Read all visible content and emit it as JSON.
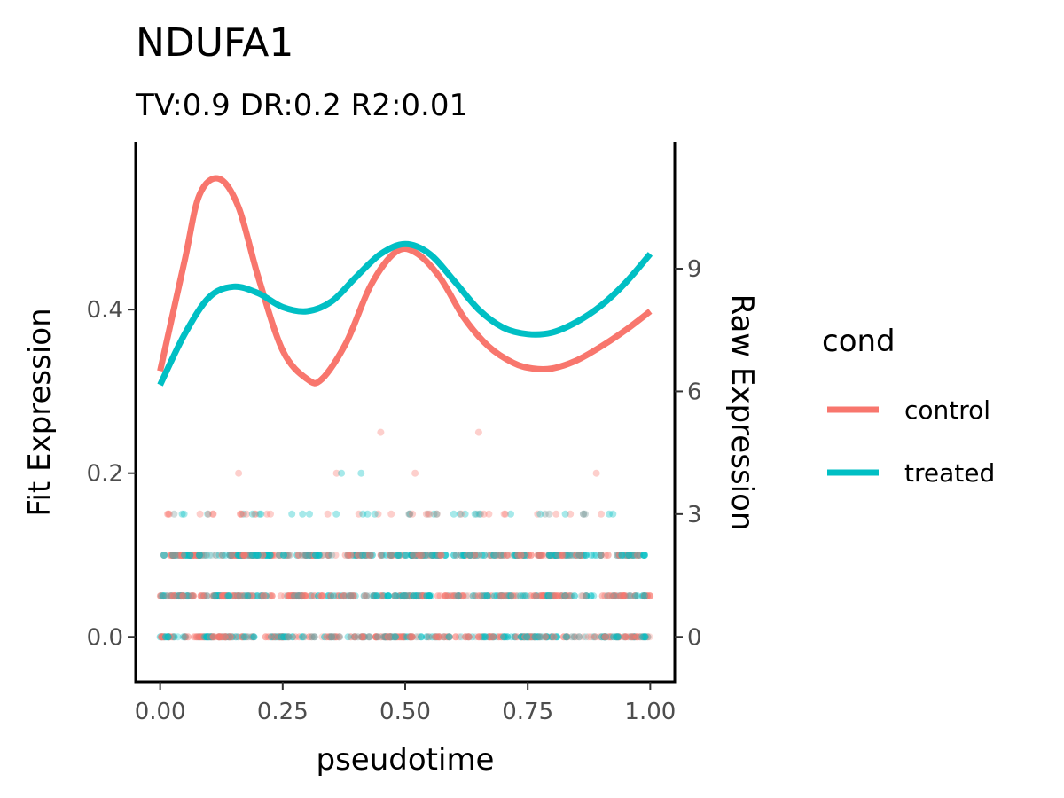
{
  "chart_data": {
    "type": "line+scatter",
    "title": "NDUFA1",
    "subtitle": "TV:0.9 DR:0.2 R2:0.01",
    "xlabel": "pseudotime",
    "ylabel_left": "Fit Expression",
    "ylabel_right": "Raw Expression",
    "xlim": [
      -0.05,
      1.05
    ],
    "ylim_left": [
      -0.055,
      0.605
    ],
    "ylim_right": [
      -1.1,
      12.1
    ],
    "x_ticks": [
      0.0,
      0.25,
      0.5,
      0.75,
      1.0
    ],
    "x_tick_labels": [
      "0.00",
      "0.25",
      "0.50",
      "0.75",
      "1.00"
    ],
    "y_left_ticks": [
      0.0,
      0.2,
      0.4
    ],
    "y_left_tick_labels": [
      "0.0",
      "0.2",
      "0.4"
    ],
    "y_right_ticks": [
      0,
      3,
      6,
      9
    ],
    "y_right_tick_labels": [
      "0",
      "3",
      "6",
      "9"
    ],
    "grid": false,
    "legend": {
      "title": "cond",
      "position": "right",
      "entries": [
        {
          "label": "control",
          "color": "#F8766D"
        },
        {
          "label": "treated",
          "color": "#00BFC4"
        }
      ]
    },
    "series": [
      {
        "name": "control",
        "color": "#F8766D",
        "axis": "left",
        "x": [
          0.0,
          0.05,
          0.08,
          0.12,
          0.16,
          0.2,
          0.25,
          0.3,
          0.33,
          0.38,
          0.43,
          0.48,
          0.52,
          0.57,
          0.62,
          0.67,
          0.72,
          0.76,
          0.8,
          0.85,
          0.9,
          0.95,
          1.0
        ],
        "y": [
          0.325,
          0.46,
          0.54,
          0.56,
          0.525,
          0.44,
          0.35,
          0.315,
          0.315,
          0.36,
          0.43,
          0.47,
          0.47,
          0.44,
          0.39,
          0.355,
          0.335,
          0.328,
          0.328,
          0.338,
          0.355,
          0.375,
          0.398
        ]
      },
      {
        "name": "treated",
        "color": "#00BFC4",
        "axis": "left",
        "x": [
          0.0,
          0.05,
          0.1,
          0.15,
          0.2,
          0.25,
          0.3,
          0.35,
          0.4,
          0.45,
          0.5,
          0.55,
          0.6,
          0.65,
          0.7,
          0.75,
          0.8,
          0.85,
          0.9,
          0.95,
          1.0
        ],
        "y": [
          0.308,
          0.37,
          0.415,
          0.428,
          0.42,
          0.403,
          0.398,
          0.41,
          0.44,
          0.468,
          0.48,
          0.468,
          0.435,
          0.4,
          0.378,
          0.37,
          0.372,
          0.385,
          0.405,
          0.433,
          0.468
        ]
      }
    ],
    "raw_points": {
      "axis": "right",
      "colors": {
        "control": "#F8766D",
        "treated": "#00BFC4",
        "overlap": "#7A9A9A"
      },
      "dense_levels": [
        {
          "y": 0,
          "x_range": [
            0.0,
            1.0
          ]
        },
        {
          "y": 1,
          "x_range": [
            0.0,
            1.0
          ]
        },
        {
          "y": 2,
          "x_range": [
            0.0,
            0.99
          ]
        },
        {
          "y": 3,
          "x_range": [
            0.0,
            0.93
          ],
          "sparse": true
        }
      ],
      "outliers": [
        {
          "x": 0.45,
          "y": 5,
          "cond": "control"
        },
        {
          "x": 0.65,
          "y": 5,
          "cond": "control"
        },
        {
          "x": 0.16,
          "y": 4,
          "cond": "control"
        },
        {
          "x": 0.36,
          "y": 4,
          "cond": "control"
        },
        {
          "x": 0.37,
          "y": 4,
          "cond": "treated"
        },
        {
          "x": 0.41,
          "y": 4,
          "cond": "treated"
        },
        {
          "x": 0.52,
          "y": 4,
          "cond": "control"
        },
        {
          "x": 0.89,
          "y": 4,
          "cond": "control"
        }
      ]
    }
  }
}
